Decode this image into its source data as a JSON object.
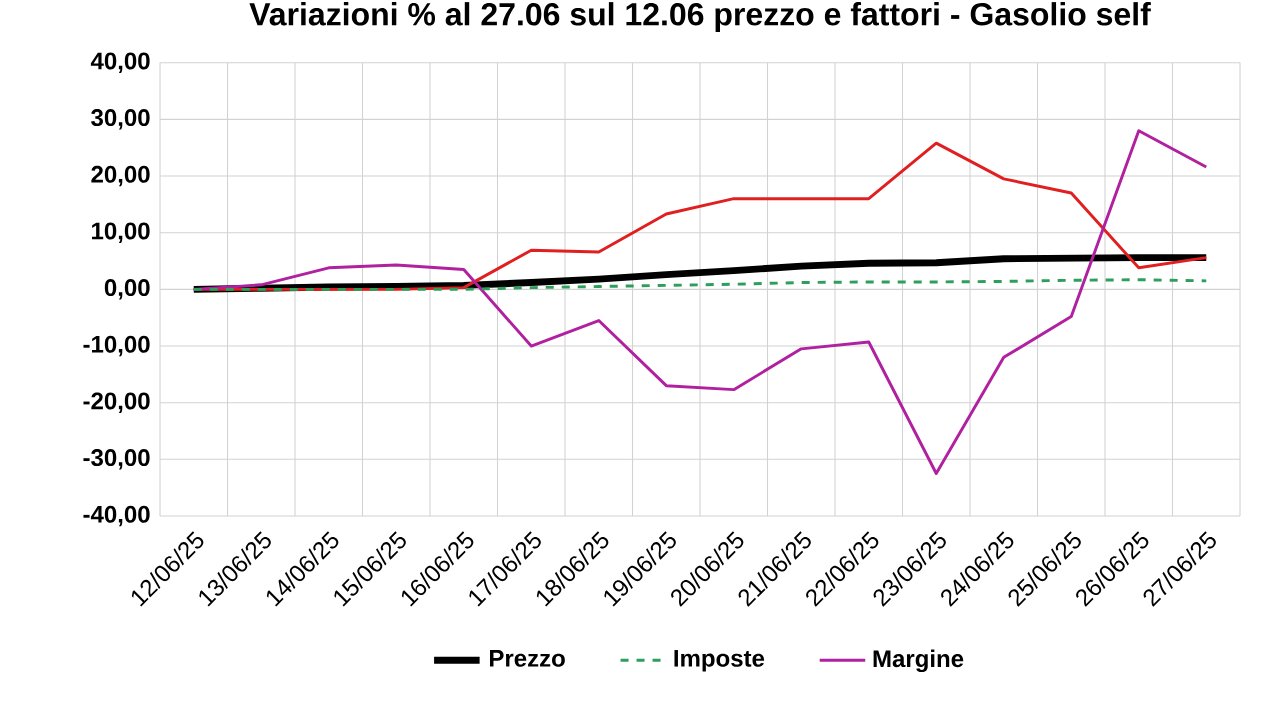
{
  "chart_data": {
    "type": "line",
    "title": "Variazioni % al 27.06 sul 12.06 prezzo e fattori - Gasolio self",
    "categories": [
      "12/06/25",
      "13/06/25",
      "14/06/25",
      "15/06/25",
      "16/06/25",
      "17/06/25",
      "18/06/25",
      "19/06/25",
      "20/06/25",
      "21/06/25",
      "22/06/25",
      "23/06/25",
      "24/06/25",
      "25/06/25",
      "26/06/25",
      "27/06/25"
    ],
    "series": [
      {
        "name": "Prezzo",
        "color": "#000000",
        "line_style": "solid",
        "values": [
          0,
          0.2,
          0.4,
          0.5,
          0.7,
          1.2,
          1.8,
          2.6,
          3.3,
          4.1,
          4.6,
          4.7,
          5.4,
          5.5,
          5.6,
          5.6
        ]
      },
      {
        "name": "Imposte",
        "color": "#2e9e5b",
        "line_style": "dashed",
        "values": [
          0,
          0,
          0,
          0,
          0,
          0.3,
          0.5,
          0.7,
          0.9,
          1.2,
          1.3,
          1.3,
          1.4,
          1.6,
          1.7,
          1.5
        ]
      },
      {
        "color": "#e02020",
        "line_style": "solid",
        "values": [
          0,
          0,
          0,
          0,
          0.3,
          6.9,
          6.6,
          13.3,
          16,
          16,
          16,
          25.8,
          19.5,
          17,
          3.8,
          5.6
        ]
      },
      {
        "name": "Margine",
        "color": "#b0209f",
        "line_style": "solid",
        "values": [
          0,
          0.8,
          3.8,
          4.3,
          3.5,
          -10,
          -5.5,
          -17,
          -17.7,
          -10.5,
          -9.3,
          -32.5,
          -12,
          -4.8,
          28,
          21.6
        ]
      }
    ],
    "ylim": [
      -40,
      40
    ],
    "yticks": [
      {
        "value": -40,
        "label": "-40,00"
      },
      {
        "value": -30,
        "label": "-30,00"
      },
      {
        "value": -20,
        "label": "-20,00"
      },
      {
        "value": -10,
        "label": "-10,00"
      },
      {
        "value": 0,
        "label": "0,00"
      },
      {
        "value": 10,
        "label": "10,00"
      },
      {
        "value": 20,
        "label": "20,00"
      },
      {
        "value": 30,
        "label": "30,00"
      },
      {
        "value": 40,
        "label": "40,00"
      }
    ],
    "grid": true,
    "legend": "bottom",
    "marker": "none"
  }
}
